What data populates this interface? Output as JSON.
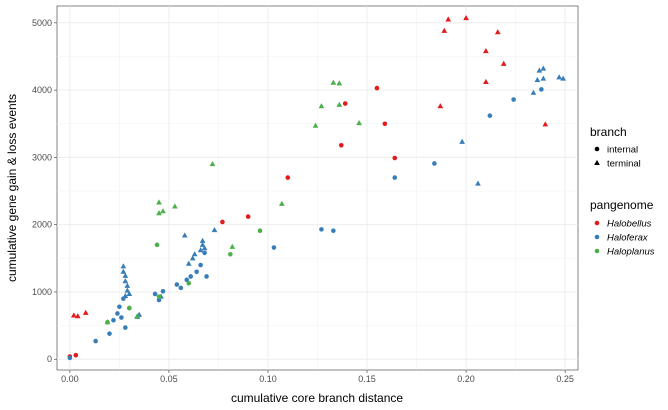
{
  "chart_data": {
    "type": "scatter",
    "xlabel": "cumulative core branch distance",
    "ylabel": "cumulative gene gain & loss events",
    "xlim": [
      -0.0065,
      0.2565
    ],
    "ylim": [
      -160,
      5250
    ],
    "x_ticks": [
      "0.00",
      "0.05",
      "0.10",
      "0.15",
      "0.20",
      "0.25"
    ],
    "y_ticks": [
      "0",
      "1000",
      "2000",
      "3000",
      "4000",
      "5000"
    ],
    "grid": true,
    "legend_position": "right",
    "legends": {
      "shape": {
        "title": "branch",
        "entries": [
          {
            "key": "internal",
            "label": "internal",
            "symbol": "circle"
          },
          {
            "key": "terminal",
            "label": "terminal",
            "symbol": "triangle"
          }
        ]
      },
      "color": {
        "title": "pangenome",
        "entries": [
          {
            "key": "Halobellus",
            "label": "Halobellus",
            "color": "#e41a1c"
          },
          {
            "key": "Haloferax",
            "label": "Haloferax",
            "color": "#377eb8"
          },
          {
            "key": "Haloplanus",
            "label": "Haloplanus",
            "color": "#4daf4a"
          }
        ]
      }
    },
    "series": [
      {
        "pangenome": "Halobellus",
        "branch": "internal",
        "points": [
          [
            0.0,
            40
          ],
          [
            0.003,
            60
          ],
          [
            0.077,
            2040
          ],
          [
            0.09,
            2120
          ],
          [
            0.11,
            2700
          ],
          [
            0.137,
            3180
          ],
          [
            0.139,
            3800
          ],
          [
            0.155,
            4030
          ],
          [
            0.159,
            3500
          ],
          [
            0.164,
            2990
          ]
        ]
      },
      {
        "pangenome": "Halobellus",
        "branch": "terminal",
        "points": [
          [
            0.002,
            650
          ],
          [
            0.004,
            640
          ],
          [
            0.008,
            690
          ],
          [
            0.187,
            3760
          ],
          [
            0.189,
            4880
          ],
          [
            0.191,
            5050
          ],
          [
            0.2,
            5070
          ],
          [
            0.21,
            4580
          ],
          [
            0.21,
            4120
          ],
          [
            0.216,
            4860
          ],
          [
            0.219,
            4390
          ],
          [
            0.24,
            3490
          ]
        ]
      },
      {
        "pangenome": "Haloferax",
        "branch": "internal",
        "points": [
          [
            0.0,
            20
          ],
          [
            0.013,
            270
          ],
          [
            0.02,
            380
          ],
          [
            0.022,
            580
          ],
          [
            0.024,
            680
          ],
          [
            0.025,
            780
          ],
          [
            0.027,
            900
          ],
          [
            0.026,
            620
          ],
          [
            0.028,
            470
          ],
          [
            0.03,
            760
          ],
          [
            0.043,
            970
          ],
          [
            0.045,
            880
          ],
          [
            0.047,
            1010
          ],
          [
            0.054,
            1110
          ],
          [
            0.056,
            1060
          ],
          [
            0.059,
            1180
          ],
          [
            0.061,
            1230
          ],
          [
            0.064,
            1300
          ],
          [
            0.066,
            1400
          ],
          [
            0.068,
            1580
          ],
          [
            0.069,
            1230
          ],
          [
            0.103,
            1660
          ],
          [
            0.127,
            1930
          ],
          [
            0.133,
            1910
          ],
          [
            0.164,
            2700
          ],
          [
            0.184,
            2910
          ],
          [
            0.212,
            3620
          ],
          [
            0.224,
            3860
          ],
          [
            0.238,
            4010
          ]
        ]
      },
      {
        "pangenome": "Haloferax",
        "branch": "terminal",
        "points": [
          [
            0.027,
            1380
          ],
          [
            0.027,
            1300
          ],
          [
            0.028,
            1240
          ],
          [
            0.028,
            1160
          ],
          [
            0.029,
            1090
          ],
          [
            0.029,
            1020
          ],
          [
            0.03,
            970
          ],
          [
            0.028,
            940
          ],
          [
            0.034,
            630
          ],
          [
            0.035,
            660
          ],
          [
            0.046,
            930
          ],
          [
            0.058,
            1840
          ],
          [
            0.06,
            1420
          ],
          [
            0.062,
            1500
          ],
          [
            0.063,
            1560
          ],
          [
            0.066,
            1620
          ],
          [
            0.067,
            1700
          ],
          [
            0.067,
            1760
          ],
          [
            0.068,
            1650
          ],
          [
            0.073,
            1920
          ],
          [
            0.198,
            3230
          ],
          [
            0.206,
            2610
          ],
          [
            0.234,
            3960
          ],
          [
            0.236,
            4150
          ],
          [
            0.237,
            4290
          ],
          [
            0.239,
            4320
          ],
          [
            0.239,
            4170
          ],
          [
            0.247,
            4190
          ],
          [
            0.249,
            4170
          ]
        ]
      },
      {
        "pangenome": "Haloplanus",
        "branch": "internal",
        "points": [
          [
            0.019,
            550
          ],
          [
            0.03,
            760
          ],
          [
            0.044,
            1700
          ],
          [
            0.045,
            930
          ],
          [
            0.06,
            1130
          ],
          [
            0.081,
            1560
          ],
          [
            0.096,
            1910
          ]
        ]
      },
      {
        "pangenome": "Haloplanus",
        "branch": "terminal",
        "points": [
          [
            0.019,
            550
          ],
          [
            0.034,
            640
          ],
          [
            0.045,
            2330
          ],
          [
            0.045,
            2170
          ],
          [
            0.047,
            2200
          ],
          [
            0.053,
            2270
          ],
          [
            0.072,
            2900
          ],
          [
            0.082,
            1670
          ],
          [
            0.107,
            2310
          ],
          [
            0.124,
            3470
          ],
          [
            0.127,
            3760
          ],
          [
            0.133,
            4110
          ],
          [
            0.136,
            4100
          ],
          [
            0.136,
            3780
          ],
          [
            0.146,
            3510
          ]
        ]
      }
    ]
  }
}
